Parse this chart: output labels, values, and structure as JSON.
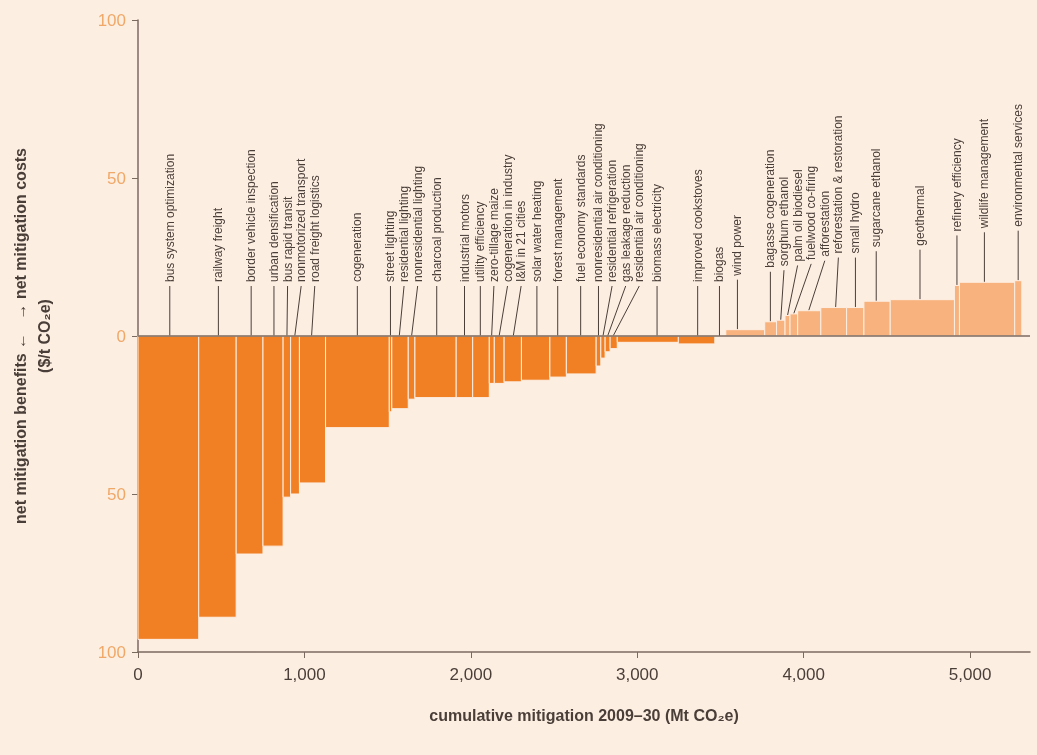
{
  "chart_data": {
    "type": "histogram",
    "xlabel": "cumulative mitigation 2009–30 (Mt CO₂e)",
    "ylabel": "net mitigation benefits ←   → net mitigation costs\n($/t CO₂e)",
    "bins": [
      0,
      365,
      590,
      751,
      872,
      917,
      970,
      1127,
      1510,
      1525,
      1624,
      1664,
      1912,
      2011,
      2111,
      2141,
      2200,
      2304,
      2475,
      2574,
      2753,
      2781,
      2807,
      2837,
      2880,
      3247,
      3466,
      3532,
      3766,
      3837,
      3888,
      3918,
      3964,
      4103,
      4258,
      4362,
      4520,
      4906,
      4936,
      5268,
      5311
    ],
    "values": [
      -96,
      -89,
      -69,
      -66.5,
      -51,
      -50,
      -46.5,
      -29,
      -24,
      -23,
      -20,
      -19.5,
      -19.5,
      -19.5,
      -15,
      -15,
      -14.5,
      -14,
      -13,
      -12,
      -9.5,
      -7,
      -5,
      -4,
      -2,
      -2.5,
      null,
      2,
      4.5,
      5,
      6.5,
      7,
      8,
      9,
      9,
      11,
      11.5,
      16,
      17,
      17.5
    ],
    "colors": [
      "#f18024",
      "#f18024",
      "#f18024",
      "#f18024",
      "#f18024",
      "#f18024",
      "#f18024",
      "#f18024",
      "#f18024",
      "#f18024",
      "#f18024",
      "#f18024",
      "#f18024",
      "#f18024",
      "#f18024",
      "#f18024",
      "#f18024",
      "#f18024",
      "#f18024",
      "#f18024",
      "#f18024",
      "#f18024",
      "#f18024",
      "#f18024",
      "#f18024",
      "#f18024",
      null,
      "#f7b27d",
      "#f7b27d",
      "#f7b27d",
      "#f7b27d",
      "#f7b27d",
      "#f7b27d",
      "#f7b27d",
      "#f7b27d",
      "#f7b27d",
      "#f7b27d",
      "#f7b27d",
      "#f7b27d",
      "#f7b27d"
    ],
    "xlim": [
      0,
      5360
    ],
    "xticks": [
      0,
      {
        "value": 1000,
        "label": "1,000"
      },
      {
        "value": 2000,
        "label": "2,000"
      },
      {
        "value": 3000,
        "label": "3,000"
      },
      {
        "value": 4000,
        "label": "4,000"
      },
      {
        "value": 5000,
        "label": "5,000"
      }
    ],
    "ylim": [
      -100,
      100
    ],
    "yticks": [
      {
        "value": -100,
        "label": "100"
      },
      {
        "value": -50,
        "label": "50"
      },
      0,
      50,
      100
    ],
    "grid": false,
    "ref_lines": [
      {
        "axis": "y",
        "value": 0,
        "color": "#7a6a5f"
      }
    ],
    "annotations": [
      {
        "text": "bus system optimization",
        "x": 191,
        "y": 0
      },
      {
        "text": "railway freight",
        "x": 483,
        "y": 0
      },
      {
        "text": "border vehicle inspection",
        "x": 680,
        "y": 0
      },
      {
        "text": "urban densification",
        "x": 817,
        "y": 0
      },
      {
        "text": "bus rapid transit",
        "x": 895,
        "y": 0
      },
      {
        "text": "nonmotorized transport",
        "x": 942,
        "y": 0
      },
      {
        "text": "road freight logistics",
        "x": 1043,
        "y": 0
      },
      {
        "text": "cogeneration",
        "x": 1318,
        "y": 0
      },
      {
        "text": "street lighting",
        "x": 1517,
        "y": 0
      },
      {
        "text": "residential lighting",
        "x": 1570,
        "y": 0
      },
      {
        "text": "nonresidential lighting",
        "x": 1644,
        "y": 0
      },
      {
        "text": "charcoal production",
        "x": 1795,
        "y": 0
      },
      {
        "text": "industrial motors",
        "x": 1962,
        "y": 0
      },
      {
        "text": "utility efficiency",
        "x": 2057,
        "y": 0
      },
      {
        "text": "zero-tillage maize",
        "x": 2125,
        "y": 0
      },
      {
        "text": "cogeneration in industry",
        "x": 2170,
        "y": 0
      },
      {
        "text": "I&M in 21 cities",
        "x": 2255,
        "y": 0
      },
      {
        "text": "solar water heating",
        "x": 2397,
        "y": 0
      },
      {
        "text": "forest management",
        "x": 2522,
        "y": 0
      },
      {
        "text": "fuel economy standards",
        "x": 2660,
        "y": 0
      },
      {
        "text": "nonresidential air conditioning",
        "x": 2767,
        "y": 0
      },
      {
        "text": "residential refrigeration",
        "x": 2794,
        "y": 0
      },
      {
        "text": "gas leakage reduction",
        "x": 2822,
        "y": 0
      },
      {
        "text": "residential air conditioning",
        "x": 2855,
        "y": 0
      },
      {
        "text": "biomass electricity",
        "x": 3119,
        "y": 0
      },
      {
        "text": "improved cookstoves",
        "x": 3363,
        "y": 0
      },
      {
        "text": "biogas",
        "x": 3494,
        "y": 0
      },
      {
        "text": "wind power",
        "x": 3602,
        "y": 2
      },
      {
        "text": "bagasse cogeneration",
        "x": 3800,
        "y": 4.5
      },
      {
        "text": "sorghum ethanol",
        "x": 3862,
        "y": 5
      },
      {
        "text": "palm oil biodiesel",
        "x": 3903,
        "y": 6.5
      },
      {
        "text": "fuelwood co-firing",
        "x": 3940,
        "y": 7
      },
      {
        "text": "afforestation",
        "x": 4030,
        "y": 8
      },
      {
        "text": "reforestation & restoration",
        "x": 4192,
        "y": 9
      },
      {
        "text": "small hydro",
        "x": 4311,
        "y": 9
      },
      {
        "text": "sugarcane ethanol",
        "x": 4436,
        "y": 11
      },
      {
        "text": "geothermal",
        "x": 4699,
        "y": 11.5
      },
      {
        "text": "refinery efficiency",
        "x": 4921,
        "y": 16
      },
      {
        "text": "wildlife management",
        "x": 5086,
        "y": 17
      },
      {
        "text": "environmental services",
        "x": 5289,
        "y": 17.5
      }
    ]
  }
}
